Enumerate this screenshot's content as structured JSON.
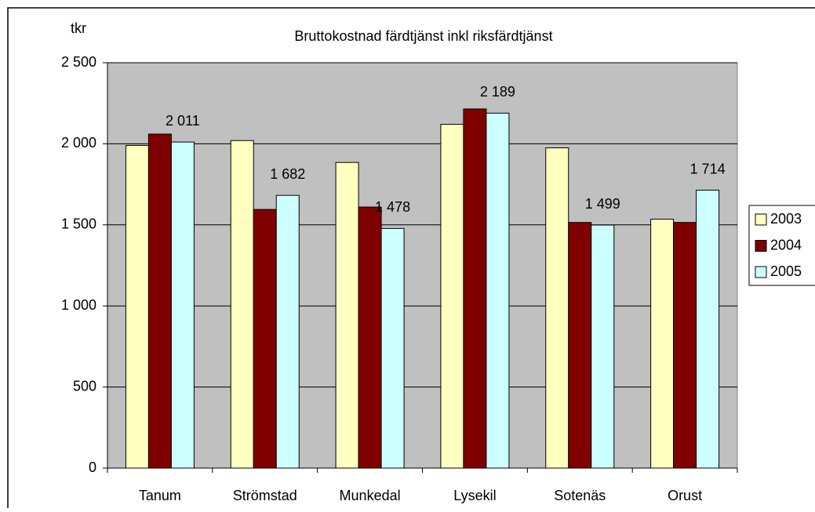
{
  "chart_data": {
    "type": "bar",
    "title": "Bruttokostnad färdtjänst inkl riksfärdtjänst",
    "y_label": "tkr",
    "categories": [
      "Tanum",
      "Strömstad",
      "Munkedal",
      "Lysekil",
      "Sotenäs",
      "Orust"
    ],
    "series": [
      {
        "name": "2003",
        "color": "#ffffc0",
        "values": [
          1990,
          2020,
          1885,
          2120,
          1975,
          1535
        ]
      },
      {
        "name": "2004",
        "color": "#800000",
        "values": [
          2060,
          1595,
          1610,
          2215,
          1515,
          1515
        ]
      },
      {
        "name": "2005",
        "color": "#ccffff",
        "values": [
          2011,
          1682,
          1478,
          2189,
          1499,
          1714
        ],
        "value_labels": [
          "2 011",
          "1 682",
          "1 478",
          "2 189",
          "1 499",
          "1 714"
        ]
      }
    ],
    "ylim": [
      0,
      2500
    ],
    "yticks": [
      0,
      500,
      {
        "value": 1000,
        "label": "1 000"
      },
      {
        "value": 1500,
        "label": "1 500"
      },
      {
        "value": 2000,
        "label": "2 000"
      },
      {
        "value": 2500,
        "label": "2 500"
      }
    ],
    "grid": true,
    "plot_background": "#c0c0c0",
    "legend": "right"
  }
}
